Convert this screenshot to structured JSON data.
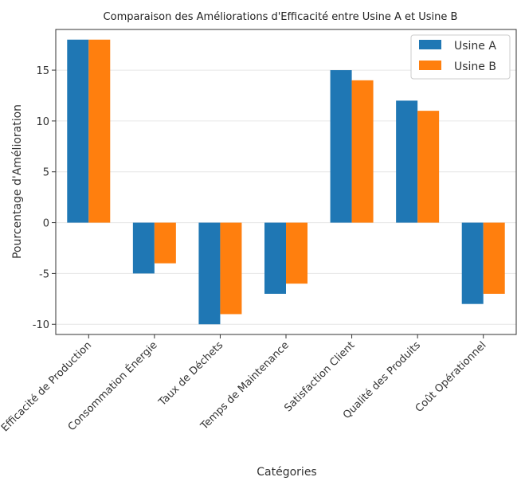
{
  "chart_data": {
    "type": "bar",
    "title": "Comparaison des Améliorations d'Efficacité entre Usine A et Usine B",
    "xlabel": "Catégories",
    "ylabel": "Pourcentage d'Amélioration",
    "categories": [
      "Efficacité de Production",
      "Consommation Énergie",
      "Taux de Déchets",
      "Temps de Maintenance",
      "Satisfaction Client",
      "Qualité des Produits",
      "Coût Opérationnel"
    ],
    "series": [
      {
        "name": "Usine A",
        "color": "#1f77b4",
        "values": [
          18,
          -5,
          -10,
          -7,
          15,
          12,
          -8
        ]
      },
      {
        "name": "Usine B",
        "color": "#ff7f0e",
        "values": [
          18,
          -4,
          -9,
          -6,
          14,
          11,
          -7
        ]
      }
    ],
    "yticks": [
      -10,
      -5,
      0,
      5,
      10,
      15
    ],
    "ytick_labels": [
      "-10",
      "-5",
      "0",
      "5",
      "10",
      "15"
    ],
    "ylim": [
      -11,
      19
    ],
    "grid": true,
    "legend_position": "top-right"
  }
}
